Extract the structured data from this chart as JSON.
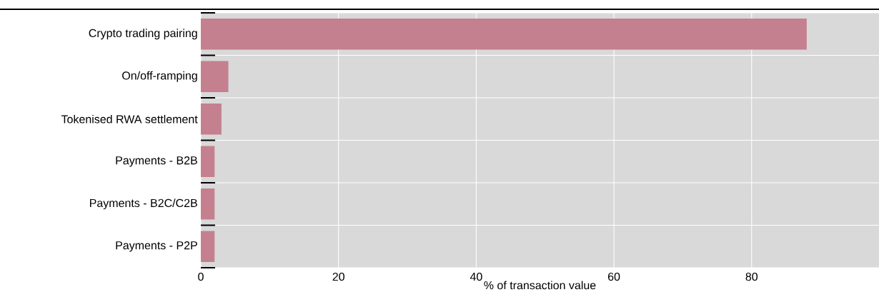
{
  "chart_data": {
    "type": "bar",
    "orientation": "horizontal",
    "xlabel": "% of transaction value",
    "categories": [
      "Crypto trading pairing",
      "On/off-ramping",
      "Tokenised RWA settlement",
      "Payments - B2B",
      "Payments - B2C/C2B",
      "Payments - P2P"
    ],
    "values": [
      88,
      4,
      3,
      2,
      2,
      2
    ],
    "color": "#c4808f",
    "xlim": [
      0,
      98.5
    ],
    "xticks": [
      0,
      20,
      40,
      60,
      80
    ],
    "grid": true
  }
}
